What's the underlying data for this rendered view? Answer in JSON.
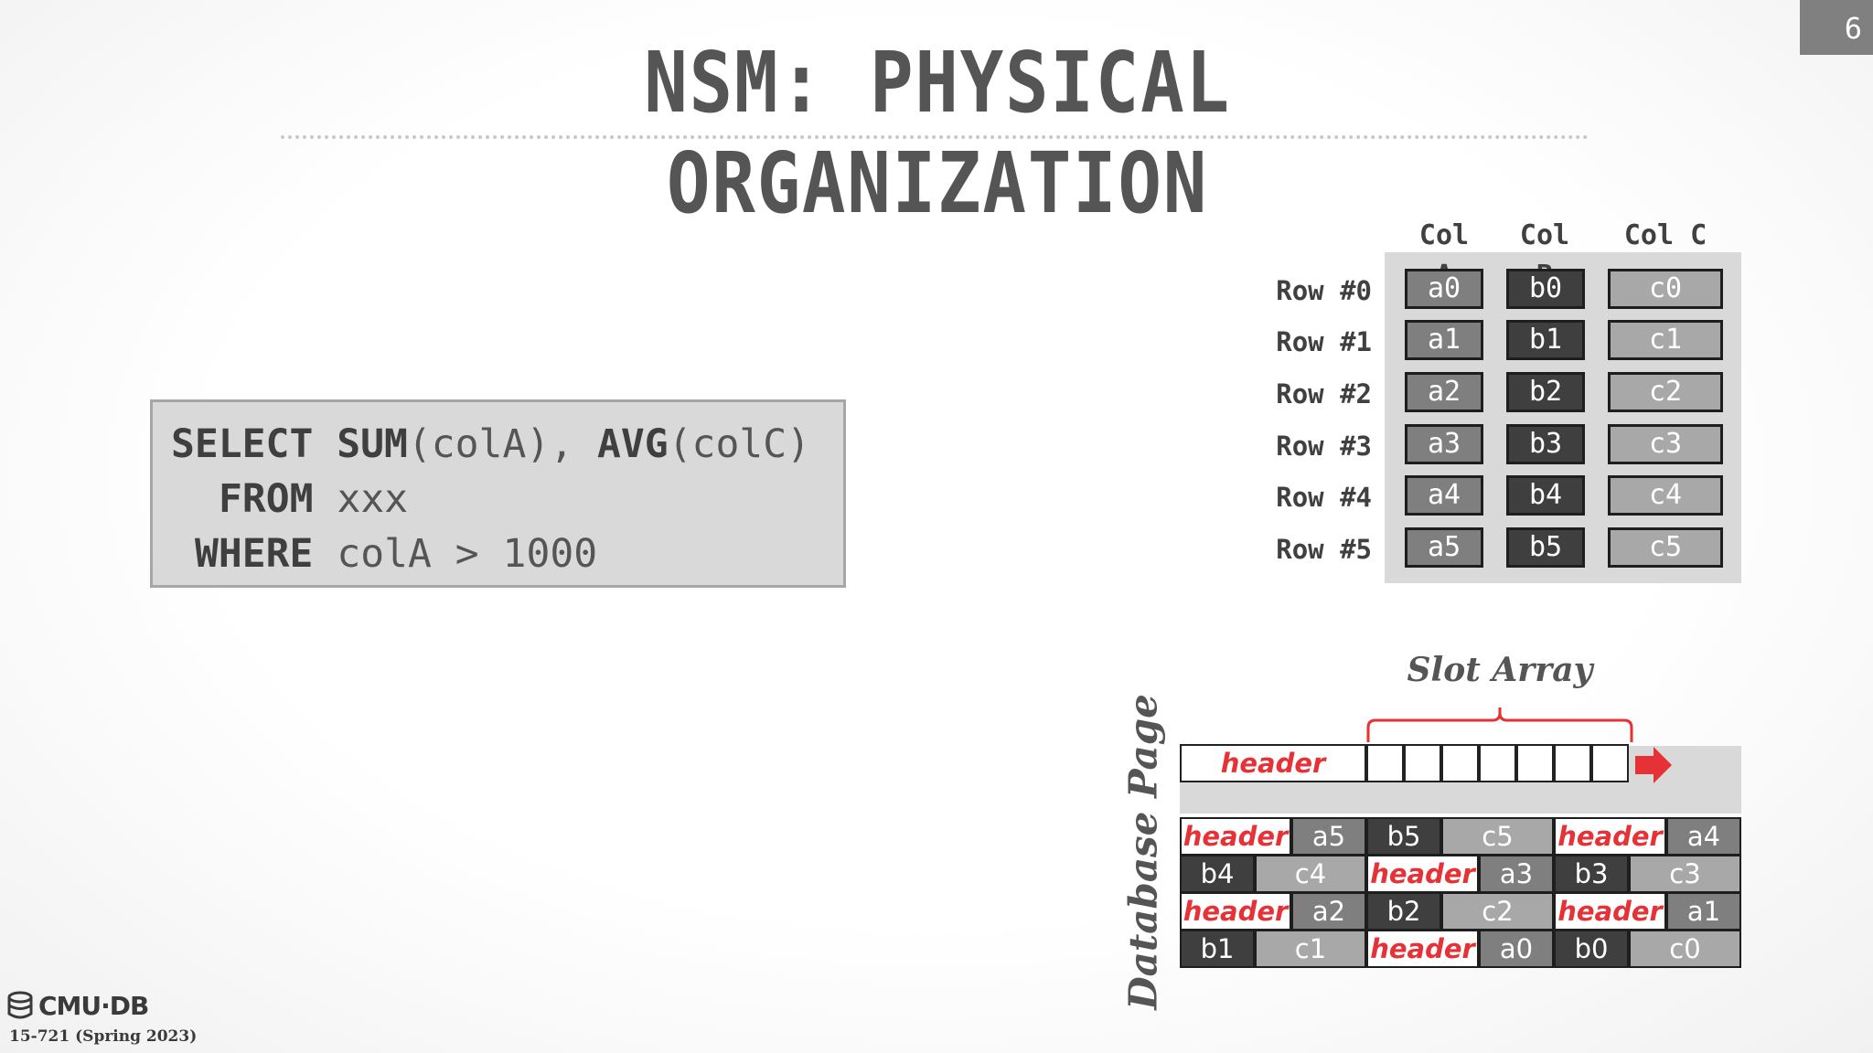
{
  "slide": {
    "number": "6",
    "title": "NSM: PHYSICAL ORGANIZATION"
  },
  "query": {
    "line1_kw": "SELECT SUM",
    "line1_rest": "(colA), ",
    "line1_kw2": "AVG",
    "line1_rest2": "(colC)",
    "line2_kw": "FROM",
    "line2_rest": " xxx",
    "line3_kw": "WHERE",
    "line3_rest": " colA > 1000"
  },
  "table": {
    "columns": [
      "Col A",
      "Col B",
      "Col C"
    ],
    "rows": [
      {
        "label": "Row #0",
        "a": "a0",
        "b": "b0",
        "c": "c0"
      },
      {
        "label": "Row #1",
        "a": "a1",
        "b": "b1",
        "c": "c1"
      },
      {
        "label": "Row #2",
        "a": "a2",
        "b": "b2",
        "c": "c2"
      },
      {
        "label": "Row #3",
        "a": "a3",
        "b": "b3",
        "c": "c3"
      },
      {
        "label": "Row #4",
        "a": "a4",
        "b": "b4",
        "c": "c4"
      },
      {
        "label": "Row #5",
        "a": "a5",
        "b": "b5",
        "c": "c5"
      }
    ]
  },
  "page": {
    "label": "Database Page",
    "slot_array_label": "Slot Array",
    "header_label": "header",
    "tuple_rows": [
      [
        {
          "t": "header",
          "k": "h"
        },
        {
          "t": "a5",
          "k": "A"
        },
        {
          "t": "b5",
          "k": "B"
        },
        {
          "t": "c5",
          "k": "C"
        },
        {
          "t": "header",
          "k": "h"
        },
        {
          "t": "a4",
          "k": "A"
        }
      ],
      [
        {
          "t": "b4",
          "k": "B"
        },
        {
          "t": "c4",
          "k": "C"
        },
        {
          "t": "header",
          "k": "h"
        },
        {
          "t": "a3",
          "k": "A"
        },
        {
          "t": "b3",
          "k": "B"
        },
        {
          "t": "c3",
          "k": "C"
        }
      ],
      [
        {
          "t": "header",
          "k": "h"
        },
        {
          "t": "a2",
          "k": "A"
        },
        {
          "t": "b2",
          "k": "B"
        },
        {
          "t": "c2",
          "k": "C"
        },
        {
          "t": "header",
          "k": "h"
        },
        {
          "t": "a1",
          "k": "A"
        }
      ],
      [
        {
          "t": "b1",
          "k": "B"
        },
        {
          "t": "c1",
          "k": "C"
        },
        {
          "t": "header",
          "k": "h"
        },
        {
          "t": "a0",
          "k": "A"
        },
        {
          "t": "b0",
          "k": "B"
        },
        {
          "t": "c0",
          "k": "C"
        }
      ]
    ]
  },
  "footer": {
    "logo": "CMU·DB",
    "course": "15-721 (Spring 2023)"
  },
  "colors": {
    "accent_red": "#e63237",
    "col_a": "#7f7f7f",
    "col_b": "#3f3f3f",
    "col_c": "#a8a8a8",
    "title": "#555555"
  }
}
